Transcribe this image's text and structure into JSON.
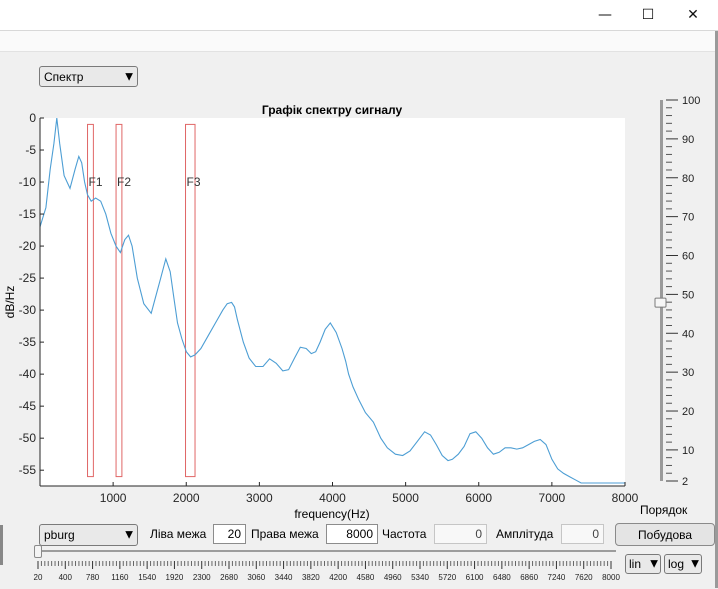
{
  "window": {
    "minimize_glyph": "—",
    "maximize_glyph": "☐",
    "close_glyph": "✕"
  },
  "mode_dropdown": {
    "selected": "Спектр"
  },
  "chart_data": {
    "type": "line",
    "title": "Графік спектру сигналу",
    "xlabel": "frequency(Hz)",
    "ylabel": "dB/Hz",
    "xlim": [
      0,
      8000
    ],
    "ylim": [
      -57,
      0
    ],
    "xticks": [
      1000,
      2000,
      3000,
      4000,
      5000,
      6000,
      7000,
      8000
    ],
    "yticks": [
      0,
      -5,
      -10,
      -15,
      -20,
      -25,
      -30,
      -35,
      -40,
      -45,
      -50,
      -55
    ],
    "grid": false,
    "line_color": "#4d9ed4",
    "series": [
      {
        "x": [
          0,
          80,
          140,
          190,
          230,
          270,
          330,
          410,
          480,
          530,
          570,
          610,
          650,
          700,
          760,
          830,
          900,
          970,
          1040,
          1100,
          1160,
          1210,
          1260,
          1330,
          1420,
          1520,
          1580,
          1650,
          1720,
          1780,
          1830,
          1880,
          1940,
          2000,
          2060,
          2120,
          2200,
          2300,
          2400,
          2500,
          2560,
          2620,
          2660,
          2700,
          2780,
          2860,
          2950,
          3050,
          3140,
          3230,
          3320,
          3400,
          3480,
          3560,
          3640,
          3710,
          3770,
          3830,
          3900,
          3970,
          4050,
          4130,
          4180,
          4220,
          4280,
          4360,
          4450,
          4560,
          4660,
          4750,
          4860,
          4960,
          5060,
          5160,
          5260,
          5340,
          5420,
          5500,
          5580,
          5640,
          5720,
          5800,
          5880,
          5960,
          6040,
          6120,
          6200,
          6280,
          6360,
          6440,
          6520,
          6600,
          6680,
          6760,
          6840,
          6920,
          7000,
          7080,
          7160,
          7240,
          7320,
          7400,
          7480,
          7560,
          7640,
          7720,
          7800,
          7880,
          7960,
          8000
        ],
        "y": [
          -17,
          -14,
          -8,
          -4,
          0,
          -4,
          -9,
          -11,
          -8,
          -6,
          -7,
          -10,
          -12,
          -13,
          -12.5,
          -13,
          -15,
          -18,
          -20,
          -21,
          -19,
          -18.3,
          -20,
          -25,
          -29,
          -30.5,
          -28,
          -25,
          -22,
          -24,
          -28,
          -32,
          -34.5,
          -36.5,
          -37.3,
          -37,
          -36,
          -34,
          -32,
          -30,
          -29,
          -28.8,
          -29.5,
          -31.5,
          -35,
          -37.5,
          -38.8,
          -38.8,
          -37.6,
          -38.3,
          -39.5,
          -39.3,
          -37.5,
          -35.8,
          -36,
          -36.8,
          -36.5,
          -35,
          -33,
          -32,
          -33.5,
          -36,
          -38,
          -40,
          -42,
          -44,
          -46,
          -47.5,
          -50,
          -51.5,
          -52.5,
          -52.7,
          -52,
          -50.5,
          -49,
          -49.5,
          -51,
          -52.7,
          -53.5,
          -53.3,
          -52.5,
          -51.3,
          -49.3,
          -49,
          -50,
          -51.5,
          -52.5,
          -52.2,
          -51.5,
          -51.5,
          -51.7,
          -51.5,
          -51,
          -50.5,
          -50.2,
          -51,
          -53.3,
          -54.8,
          -55.5,
          -56,
          -56.5,
          -57,
          -57,
          -57,
          -57,
          -57,
          -57,
          -57,
          -57,
          -57
        ]
      }
    ],
    "annotations": [
      {
        "label": "F1",
        "x_from": 650,
        "x_to": 730,
        "y": -10
      },
      {
        "label": "F2",
        "x_from": 1040,
        "x_to": 1120,
        "y": -10
      },
      {
        "label": "F3",
        "x_from": 1990,
        "x_to": 2120,
        "y": -10
      }
    ],
    "band_color": "#e06666"
  },
  "order_slider": {
    "label": "Порядок",
    "min": 2,
    "max": 100,
    "value": 48,
    "ticks": [
      100,
      90,
      80,
      70,
      60,
      50,
      40,
      30,
      20,
      10,
      2
    ]
  },
  "controls": {
    "method_selected": "pburg",
    "left_label": "Ліва межа",
    "left_value": "20",
    "right_label": "Права межа",
    "right_value": "8000",
    "freq_label": "Частота",
    "freq_value": "0",
    "amp_label": "Амплітуда",
    "amp_value": "0",
    "build_label": "Побудова"
  },
  "freq_slider": {
    "value": 20,
    "ticks": [
      "20",
      "400",
      "780",
      "1160",
      "1540",
      "1920",
      "2300",
      "2680",
      "3060",
      "3440",
      "3820",
      "4200",
      "4580",
      "4960",
      "5340",
      "5720",
      "6100",
      "6480",
      "6860",
      "7240",
      "7620",
      "8000"
    ]
  },
  "scale_x_selected": "lin",
  "scale_y_selected": "log"
}
